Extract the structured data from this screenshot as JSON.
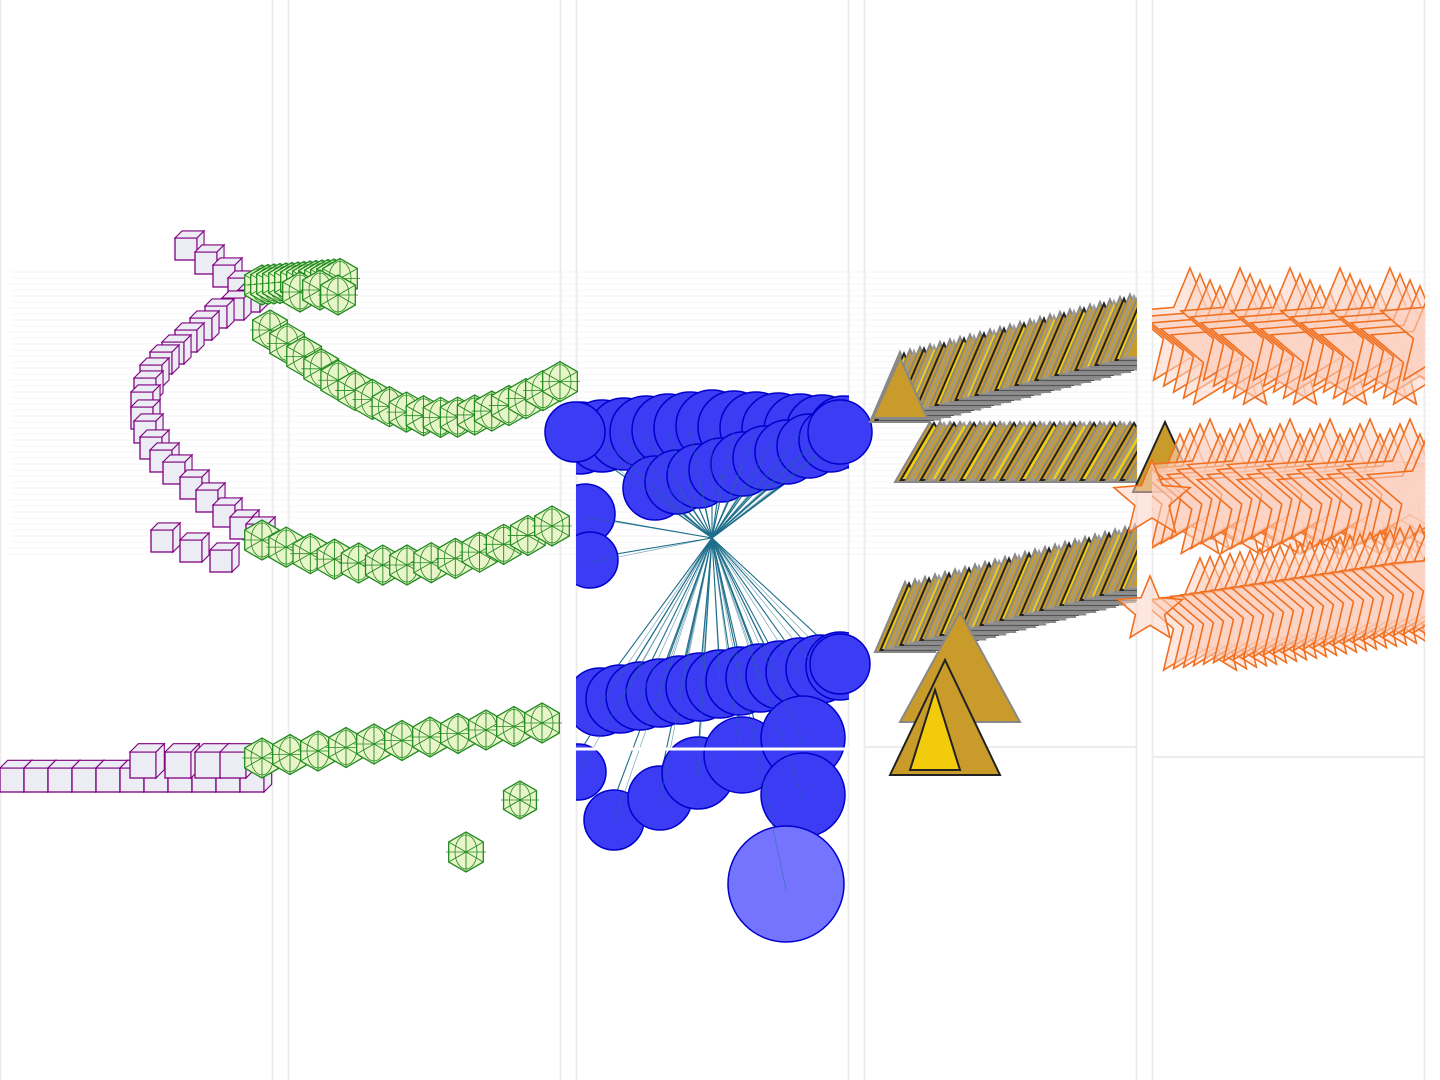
{
  "artwork": {
    "description_kind": "generative shape composition",
    "panels": [
      {
        "id": "panel-1",
        "shape": "cube",
        "color": "#800080",
        "fill": "#ececf4"
      },
      {
        "id": "panel-2",
        "shape": "icosphere",
        "color": "#228b22",
        "fill": "#e8f5c8"
      },
      {
        "id": "panel-3",
        "shape": "circle",
        "color": "#0000cc",
        "fill": "#3c3cf5"
      },
      {
        "id": "panel-4",
        "shape": "triangle",
        "color": "#222222",
        "fill": "#d4a02a"
      },
      {
        "id": "panel-5",
        "shape": "star",
        "color": "#f07020",
        "fill": "#fcd4c4"
      }
    ],
    "colors": {
      "background": "#ffffff",
      "divider": "#ececec",
      "streak": "#e4e4ec",
      "ray": "#1f6f8b",
      "gold_light": "#f2cc0c",
      "gold_dark": "#c99b2a",
      "circle_light": "#7474ff"
    }
  }
}
